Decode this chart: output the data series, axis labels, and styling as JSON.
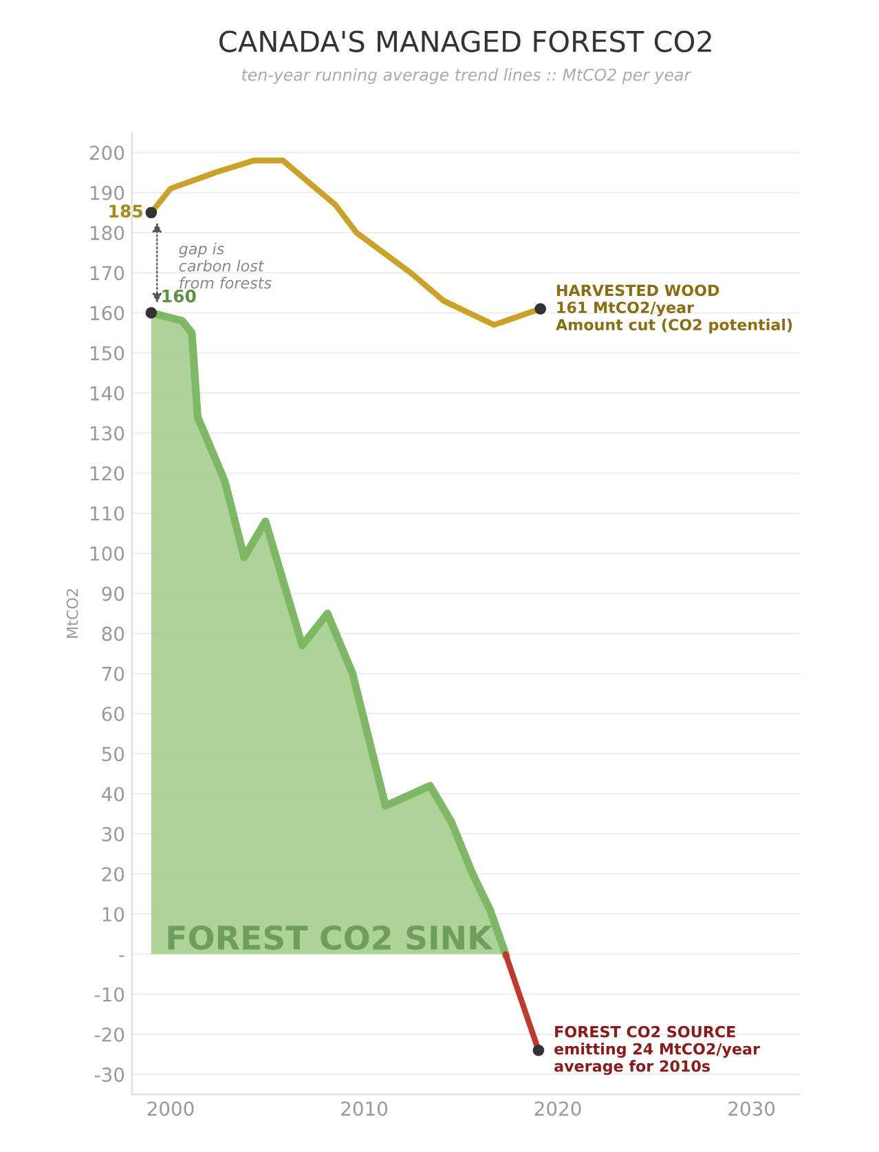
{
  "chart_data": {
    "type": "line",
    "title": "CANADA'S MANAGED FOREST CO2",
    "subtitle": "ten-year running average trend lines :: MtCO2 per year",
    "ylabel": "MtCO2",
    "series": [
      {
        "color": "#c9a227",
        "x": [
          1999,
          2000,
          2002.3,
          2004.3,
          2005.8,
          2008.5,
          2009.6,
          2012.4,
          2014.1,
          2016.7,
          2019.1
        ],
        "values": [
          185,
          191,
          195,
          198,
          198,
          187,
          180,
          170,
          163,
          157,
          161
        ]
      },
      {
        "type": "area",
        "color": "#9fcb86",
        "x": [
          1999,
          2000.6,
          2001.1,
          2001.4,
          2002.8,
          2003.8,
          2004.9,
          2006.8,
          2008.1,
          2009.4,
          2011.1,
          2013.4,
          2014.5,
          2015.6,
          2016.5,
          2017.3
        ],
        "values": [
          160,
          158,
          155,
          134,
          118,
          99,
          108,
          77,
          85,
          70,
          37,
          42,
          33,
          20,
          11,
          0
        ]
      },
      {
        "color": "#c0392b",
        "x": [
          2017.3,
          2019
        ],
        "values": [
          0,
          -24
        ]
      }
    ],
    "annotations": [
      "gap is\ncarbon lost\nfrom forests",
      "FOREST CO2 SINK",
      {
        "text": "185",
        "x": 1999,
        "y": 185
      },
      {
        "text": "160",
        "x": 1999,
        "y": 160
      },
      {
        "text": "HARVESTED WOOD\n161 MtCO2/year\nAmount cut (CO2 potential)",
        "x": 2019.1,
        "y": 161
      },
      {
        "text": "FOREST CO2 SOURCE\nemitting 24 MtCO2/year\naverage for 2010s",
        "x": 2019,
        "y": -24
      }
    ],
    "xlim": [
      1998,
      2032.5
    ],
    "xticks": [
      2000,
      2010,
      2020,
      2030
    ],
    "ylim": [
      -35,
      205
    ],
    "yticks": [
      -30,
      -20,
      -10,
      {
        "value": 0,
        "label": "-"
      },
      10,
      20,
      30,
      40,
      50,
      60,
      70,
      80,
      90,
      100,
      110,
      120,
      130,
      140,
      150,
      160,
      170,
      180,
      190,
      200
    ],
    "grid": "y"
  }
}
